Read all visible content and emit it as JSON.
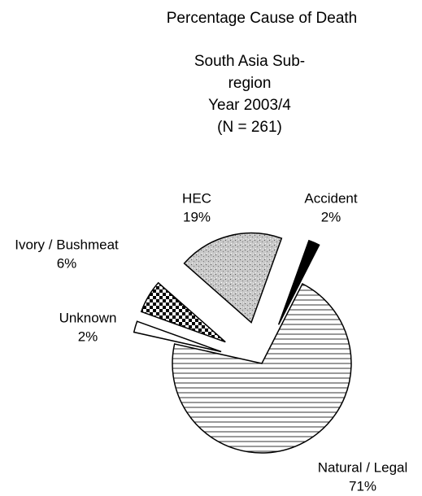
{
  "chart_data": {
    "type": "pie",
    "title": "Percentage Cause of Death",
    "subtitle": [
      "South Asia Sub-",
      "region",
      "Year 2003/4",
      "(N = 261)"
    ],
    "categories": [
      "Natural / Legal",
      "Unknown",
      "Ivory / Bushmeat",
      "HEC",
      "Accident"
    ],
    "values": [
      71,
      2,
      6,
      19,
      2
    ],
    "value_labels": [
      "71%",
      "2%",
      "6%",
      "19%",
      "2%"
    ]
  }
}
